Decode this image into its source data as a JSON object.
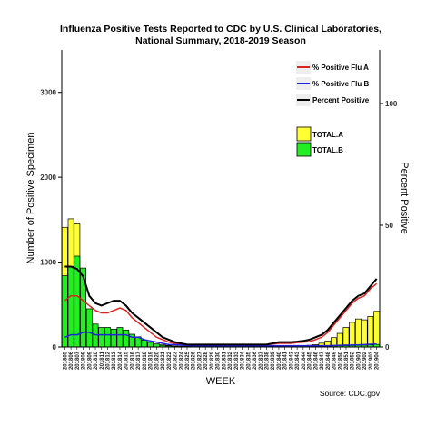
{
  "chart_data": {
    "type": "bar",
    "title": "Influenza Positive Tests Reported to CDC by U.S. Clinical Laboratories,",
    "subtitle": "National Summary, 2018-2019 Season",
    "xlabel": "WEEK",
    "ylabel": "Number of Positive Specimen",
    "y2label": "Percent Positive",
    "source": "Source: CDC.gov",
    "ylim": [
      0,
      3500
    ],
    "y2lim": [
      0,
      122
    ],
    "yticks": [
      0,
      1000,
      2000,
      3000
    ],
    "y2ticks": [
      0,
      50,
      100
    ],
    "grid": false,
    "legend_position": "top-right",
    "categories": [
      "201805",
      "201806",
      "201807",
      "201808",
      "201809",
      "201810",
      "201811",
      "201812",
      "201813",
      "201814",
      "201815",
      "201816",
      "201817",
      "201818",
      "201819",
      "201820",
      "201821",
      "201822",
      "201823",
      "201824",
      "201825",
      "201826",
      "201827",
      "201828",
      "201829",
      "201830",
      "201831",
      "201832",
      "201833",
      "201834",
      "201835",
      "201836",
      "201837",
      "201838",
      "201839",
      "201840",
      "201841",
      "201842",
      "201843",
      "201844",
      "201845",
      "201846",
      "201847",
      "201848",
      "201849",
      "201850",
      "201851",
      "201852",
      "201901",
      "201902",
      "201903",
      "201904"
    ],
    "series": [
      {
        "name": "TOTAL.A",
        "kind": "bar",
        "color": "#ffff33",
        "values": [
          1410,
          1510,
          1450,
          640,
          310,
          190,
          170,
          180,
          170,
          190,
          180,
          140,
          110,
          80,
          55,
          35,
          25,
          18,
          12,
          10,
          8,
          8,
          7,
          7,
          7,
          7,
          6,
          6,
          6,
          6,
          7,
          7,
          8,
          8,
          9,
          10,
          11,
          12,
          14,
          16,
          20,
          28,
          45,
          70,
          110,
          160,
          230,
          290,
          330,
          320,
          360,
          420
        ]
      },
      {
        "name": "TOTAL.B",
        "kind": "bar",
        "color": "#22ee22",
        "values": [
          840,
          950,
          1070,
          930,
          450,
          270,
          230,
          230,
          210,
          230,
          200,
          150,
          120,
          80,
          55,
          35,
          20,
          12,
          8,
          6,
          4,
          4,
          3,
          3,
          3,
          3,
          3,
          3,
          3,
          3,
          3,
          3,
          3,
          3,
          3,
          4,
          4,
          4,
          5,
          5,
          6,
          7,
          8,
          10,
          12,
          14,
          16,
          18,
          20,
          22,
          25,
          30
        ]
      },
      {
        "name": "% Positive Flu A",
        "kind": "line",
        "color": "#dd2222",
        "values": [
          19,
          21,
          21,
          19,
          17,
          15,
          14,
          14,
          15,
          16,
          15,
          12,
          10,
          8,
          6,
          4,
          3,
          2,
          1.5,
          1,
          1,
          1,
          1,
          1,
          1,
          1,
          1,
          1,
          1,
          1,
          1,
          1,
          1,
          1,
          1.2,
          1.5,
          1.5,
          1.5,
          1.8,
          2,
          2.2,
          3,
          4,
          6,
          9,
          12,
          15,
          18,
          20,
          21,
          24,
          26
        ]
      },
      {
        "name": "% Positive Flu B",
        "kind": "line",
        "color": "#2222dd",
        "values": [
          4,
          5,
          5,
          6,
          6,
          5,
          5,
          5,
          5,
          5,
          5,
          4,
          4,
          3,
          2.5,
          2,
          1.5,
          1,
          1,
          0.8,
          0.6,
          0.5,
          0.5,
          0.5,
          0.5,
          0.5,
          0.5,
          0.5,
          0.5,
          0.5,
          0.5,
          0.5,
          0.5,
          0.5,
          0.5,
          0.5,
          0.5,
          0.5,
          0.5,
          0.5,
          0.5,
          0.5,
          0.5,
          0.5,
          0.6,
          0.7,
          0.8,
          0.8,
          0.9,
          1,
          1.1,
          1.2
        ]
      },
      {
        "name": "Percent Positive",
        "kind": "line",
        "color": "#000000",
        "values": [
          33,
          33,
          32,
          29,
          21,
          18,
          17,
          18,
          19,
          19,
          17,
          14,
          12,
          10,
          8,
          6,
          4,
          3,
          2,
          1.5,
          1,
          1,
          1,
          1,
          1,
          1,
          1,
          1,
          1,
          1,
          1,
          1,
          1,
          1,
          1.5,
          2,
          2,
          2,
          2.2,
          2.5,
          3,
          4,
          5,
          7,
          10,
          13,
          16,
          19,
          21,
          22,
          25,
          28
        ]
      }
    ]
  }
}
